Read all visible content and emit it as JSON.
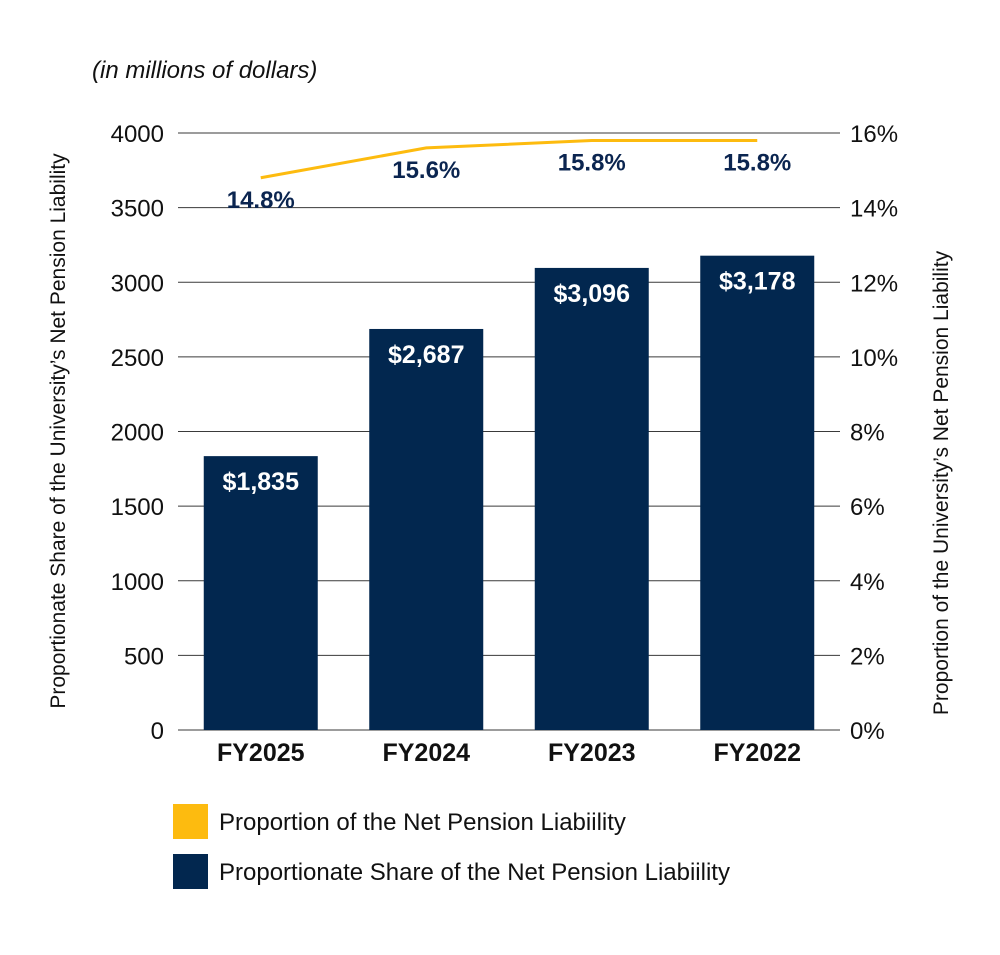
{
  "chart_data": {
    "type": "bar",
    "subtitle": "(in millions of dollars)",
    "categories": [
      "FY2025",
      "FY2024",
      "FY2023",
      "FY2022"
    ],
    "series": [
      {
        "name": "Proportionate Share of the Net Pension Liabiility",
        "type": "bar",
        "axis": "left",
        "color": "#02274f",
        "values": [
          1835,
          2687,
          3096,
          3178
        ],
        "labels": [
          "$1,835",
          "$2,687",
          "$3,096",
          "$3,178"
        ]
      },
      {
        "name": "Proportion of the Net Pension Liabiility",
        "type": "line",
        "axis": "right",
        "color": "#fdbb0f",
        "values": [
          14.8,
          15.6,
          15.8,
          15.8
        ],
        "labels": [
          "14.8%",
          "15.6%",
          "15.8%",
          "15.8%"
        ]
      }
    ],
    "ylabel": "Proportionate Share of the University’s Net Pension Liability",
    "y2label": "Proportion of the University’s Net Pension Liability",
    "ylim": [
      0,
      4000
    ],
    "y2lim": [
      0,
      16
    ],
    "yticks": [
      "0",
      "500",
      "1000",
      "1500",
      "2000",
      "2500",
      "3000",
      "3500",
      "4000"
    ],
    "y2ticks": [
      "0%",
      "2%",
      "4%",
      "6%",
      "8%",
      "10%",
      "12%",
      "14%",
      "16%"
    ],
    "grid": true,
    "legend_position": "bottom-center"
  }
}
